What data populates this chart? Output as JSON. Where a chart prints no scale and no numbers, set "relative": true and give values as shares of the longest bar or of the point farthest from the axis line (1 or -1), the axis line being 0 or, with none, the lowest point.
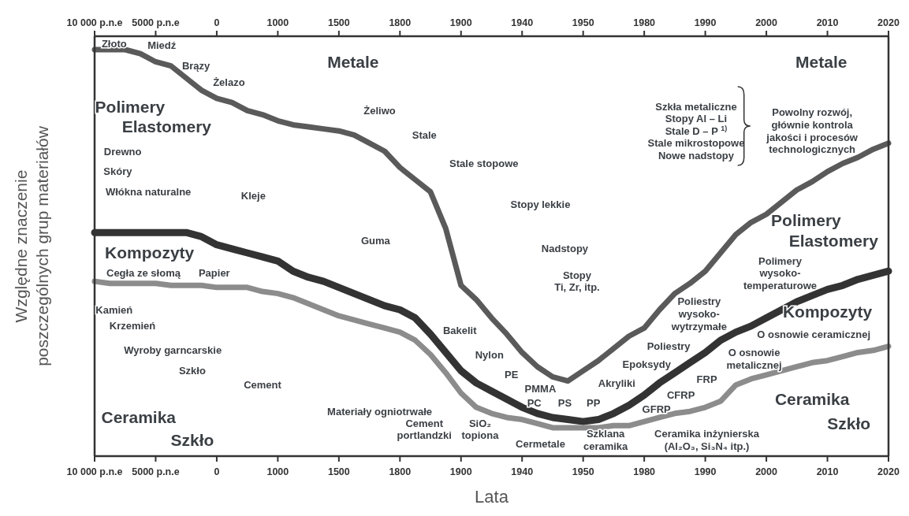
{
  "chart_data": {
    "type": "line",
    "relative": true,
    "xlabel": "Lata",
    "ylabel": "Względne znaczenie\nposzczególnych grup materiałów",
    "categories": [
      "10 000 p.n.e",
      null,
      null,
      null,
      "5000 p.n.e",
      null,
      null,
      null,
      "0",
      null,
      null,
      null,
      "1000",
      null,
      null,
      null,
      "1500",
      null,
      null,
      null,
      "1800",
      null,
      null,
      null,
      "1900",
      null,
      null,
      null,
      "1940",
      null,
      null,
      null,
      "1950",
      null,
      null,
      null,
      "1980",
      null,
      null,
      null,
      "1990",
      null,
      null,
      null,
      "2000",
      null,
      null,
      null,
      "2010",
      null,
      null,
      null,
      "2020"
    ],
    "series": [
      {
        "color": "#5a5a5a",
        "values": [
          1.0,
          1.0,
          1.0,
          0.99,
          0.97,
          0.96,
          0.93,
          0.9,
          0.88,
          0.87,
          0.85,
          0.84,
          0.825,
          0.815,
          0.81,
          0.805,
          0.8,
          0.79,
          0.77,
          0.75,
          0.71,
          0.68,
          0.65,
          0.56,
          0.42,
          0.385,
          0.34,
          0.3,
          0.255,
          0.22,
          0.195,
          0.185,
          0.21,
          0.235,
          0.265,
          0.295,
          0.315,
          0.36,
          0.4,
          0.425,
          0.455,
          0.5,
          0.545,
          0.575,
          0.595,
          0.625,
          0.655,
          0.675,
          0.7,
          0.72,
          0.735,
          0.755,
          0.77
        ]
      },
      {
        "color": "#333333",
        "values": [
          0.55,
          0.55,
          0.55,
          0.55,
          0.55,
          0.55,
          0.55,
          0.54,
          0.52,
          0.51,
          0.5,
          0.49,
          0.48,
          0.455,
          0.44,
          0.43,
          0.415,
          0.4,
          0.385,
          0.37,
          0.36,
          0.34,
          0.3,
          0.255,
          0.21,
          0.18,
          0.16,
          0.14,
          0.12,
          0.105,
          0.095,
          0.09,
          0.085,
          0.09,
          0.105,
          0.125,
          0.15,
          0.18,
          0.205,
          0.23,
          0.255,
          0.285,
          0.305,
          0.32,
          0.34,
          0.36,
          0.38,
          0.395,
          0.41,
          0.42,
          0.435,
          0.445,
          0.455
        ]
      },
      {
        "color": "#8c8c8c",
        "values": [
          0.43,
          0.425,
          0.425,
          0.425,
          0.425,
          0.42,
          0.42,
          0.42,
          0.415,
          0.415,
          0.415,
          0.405,
          0.4,
          0.39,
          0.375,
          0.36,
          0.345,
          0.335,
          0.325,
          0.315,
          0.305,
          0.285,
          0.25,
          0.205,
          0.155,
          0.12,
          0.105,
          0.095,
          0.09,
          0.08,
          0.07,
          0.07,
          0.07,
          0.07,
          0.075,
          0.075,
          0.085,
          0.095,
          0.105,
          0.11,
          0.12,
          0.135,
          0.175,
          0.19,
          0.2,
          0.21,
          0.22,
          0.23,
          0.235,
          0.245,
          0.255,
          0.26,
          0.27
        ]
      }
    ],
    "annotations": [
      "Metale",
      "Metale",
      "Polimery",
      "Elastomery",
      "Polimery",
      "Elastomery",
      "Kompozyty",
      "Kompozyty",
      "Ceramika",
      "Szkło",
      "Ceramika",
      "Szkło",
      "Złoto",
      "Miedź",
      "Brązy",
      "Żelazo",
      "Żeliwo",
      "Stale",
      "Stale stopowe",
      "Stopy lekkie",
      "Nadstopy",
      "Stopy\nTi, Zr, itp.",
      "Drewno",
      "Skóry",
      "Włókna naturalne",
      "Kleje",
      "Guma",
      "Cegła ze słomą",
      "Papier",
      "Kamień",
      "Krzemień",
      "Wyroby garncarskie",
      "Szkło",
      "Cement",
      "Materiały ogniotrwałe",
      "Cement\nportlandzki",
      "SiO₂\ntopiona",
      "Bakelit",
      "Nylon",
      "PE",
      "PMMA",
      "PC",
      "PS",
      "PP",
      "Cermetale",
      "Szklana\nceramika",
      "Akryliki",
      "Epoksydy",
      "Poliestry",
      "Poliestry\nwysoko-\nwytrzymałe",
      "Polimery\nwysoko-\ntemperaturowe",
      "GFRP",
      "CFRP",
      "FRP",
      "O osnowie\nmetalicznej",
      "O osnowie ceramicznej",
      "Ceramika inżynierska\n(Al₂O₃, Si₃N₄ itp.)",
      "Szkła metaliczne\nStopy Al – Li\nStale D – P $^{1)}$\nStale mikrostopowe\nNowe nadstopy",
      "Powolny rozwój,\ngłównie kontrola\njakości i procesów\ntechnologicznych"
    ]
  }
}
